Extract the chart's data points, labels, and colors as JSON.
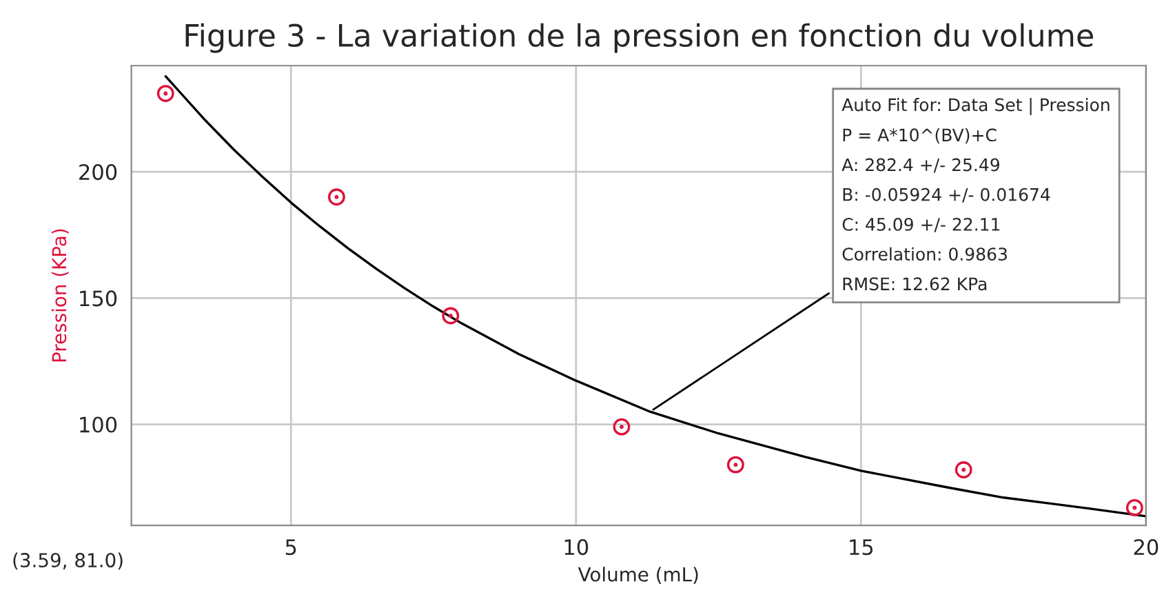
{
  "chart_data": {
    "type": "scatter",
    "title": "Figure 3 - La variation de la pression en fonction du volume",
    "xlabel": "Volume (mL)",
    "ylabel": "Pression (KPa)",
    "xlim": [
      2.2,
      20
    ],
    "ylim": [
      60,
      242
    ],
    "xticks": [
      5,
      10,
      15,
      20
    ],
    "yticks": [
      100,
      150,
      200
    ],
    "grid": true,
    "legend": false,
    "series": [
      {
        "color": "#e0103a",
        "marker": "circle",
        "x": [
          2.8,
          5.8,
          7.8,
          10.8,
          12.8,
          16.8,
          19.8
        ],
        "values": [
          231,
          190,
          143,
          99,
          84,
          82,
          67
        ]
      },
      {
        "type": "line",
        "color": "#000000",
        "marker": "none",
        "line_style": "solid",
        "x": [
          2.8,
          3.5,
          4,
          4.5,
          5,
          5.5,
          6,
          6.5,
          7,
          7.5,
          8,
          9,
          10,
          11.3,
          12.5,
          14,
          15,
          16.5,
          17.5,
          19,
          20
        ],
        "values": [
          237.8,
          220.3,
          208.7,
          198.0,
          187.8,
          178.5,
          169.7,
          161.5,
          153.8,
          146.6,
          139.9,
          127.8,
          117.3,
          105,
          96.4,
          87.2,
          81.6,
          75.1,
          71.0,
          66.7,
          63.6
        ]
      }
    ],
    "annotations": [
      {
        "text": "Auto Fit for: Data Set | Pression\nP = A*10^(BV)+C\nA: 282.4 +/- 25.49\nB: -0.05924 +/- 0.01674\nC: 45.09 +/- 22.11\nCorrelation: 0.9863\nRMSE: 12.62 KPa",
        "x": 11.3,
        "y": 105
      },
      "(3.59, 81.0)"
    ]
  }
}
